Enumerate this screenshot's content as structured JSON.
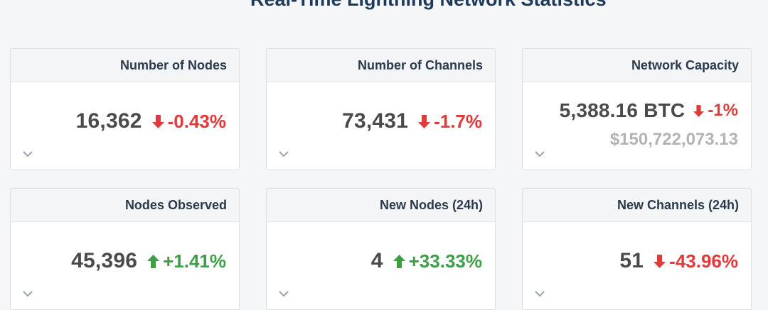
{
  "page": {
    "title": "Real-Time Lightning Network Statistics"
  },
  "colors": {
    "down": "#e03a3a",
    "up": "#3e9e48",
    "title": "#1e3a5a"
  },
  "cards": [
    {
      "label": "Number of Nodes",
      "value": "16,362",
      "change": "-0.43%",
      "direction": "down",
      "icon": "arrow-down-icon"
    },
    {
      "label": "Number of Channels",
      "value": "73,431",
      "change": "-1.7%",
      "direction": "down",
      "icon": "arrow-down-icon"
    },
    {
      "label": "Network Capacity",
      "value": "5,388.16 BTC",
      "change": "-1%",
      "direction": "down",
      "icon": "arrow-down-icon",
      "sub_value": "$150,722,073.13"
    },
    {
      "label": "Nodes Observed",
      "value": "45,396",
      "change": "+1.41%",
      "direction": "up",
      "icon": "arrow-up-icon"
    },
    {
      "label": "New Nodes (24h)",
      "value": "4",
      "change": "+33.33%",
      "direction": "up",
      "icon": "arrow-up-icon"
    },
    {
      "label": "New Channels (24h)",
      "value": "51",
      "change": "-43.96%",
      "direction": "down",
      "icon": "arrow-down-icon"
    }
  ]
}
